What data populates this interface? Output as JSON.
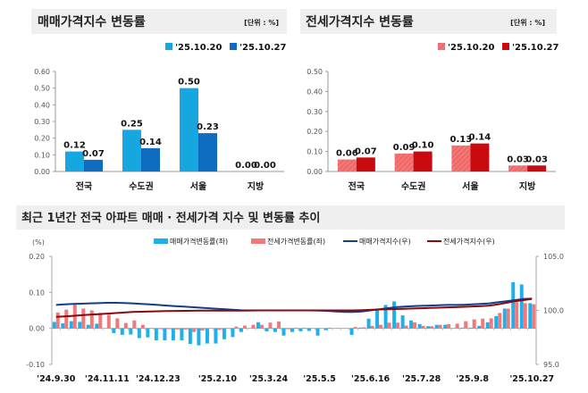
{
  "chart_data": [
    {
      "type": "bar",
      "title": "매매가격지수 변동률",
      "unit": "[단위 : %]",
      "categories": [
        "전국",
        "수도권",
        "서울",
        "지방"
      ],
      "series": [
        {
          "name": "'25.10.20",
          "values": [
            0.12,
            0.25,
            0.5,
            0.0
          ],
          "color": "#16a6e0"
        },
        {
          "name": "'25.10.27",
          "values": [
            0.07,
            0.14,
            0.23,
            0.0
          ],
          "color": "#0f6cc0"
        }
      ],
      "ylim": [
        0,
        0.6
      ],
      "yticks": [
        "0.00",
        "0.10",
        "0.20",
        "0.30",
        "0.40",
        "0.50",
        "0.60"
      ],
      "legend": "top-right"
    },
    {
      "type": "bar",
      "title": "전세가격지수 변동률",
      "unit": "[단위 : %]",
      "categories": [
        "전국",
        "수도권",
        "서울",
        "지방"
      ],
      "series": [
        {
          "name": "'25.10.20",
          "values": [
            0.06,
            0.09,
            0.13,
            0.03
          ],
          "color": "#f06868"
        },
        {
          "name": "'25.10.27",
          "values": [
            0.07,
            0.1,
            0.14,
            0.03
          ],
          "color": "#c90b10"
        }
      ],
      "ylim": [
        0,
        0.5
      ],
      "yticks": [
        "0.00",
        "0.10",
        "0.20",
        "0.30",
        "0.40",
        "0.50"
      ],
      "legend": "top-right"
    },
    {
      "type": "bar+line",
      "title": "최근 1년간 전국 아파트 매매 · 전세가격 지수 및 변동률 추이",
      "ylabel_left": "(%)",
      "ylim_left": [
        -0.1,
        0.2
      ],
      "yticks_left": [
        "-0.10",
        "0.00",
        "0.10",
        "0.20"
      ],
      "ylim_right": [
        95,
        105
      ],
      "yticks_right": [
        "95.0",
        "100.0",
        "105.0"
      ],
      "xtick_labels": [
        "'24.9.30",
        "'24.11.11",
        "'24.12.23",
        "'25.2.10",
        "'25.3.24",
        "'25.5.5",
        "'25.6.16",
        "'25.7.28",
        "'25.9.8",
        "'25.10.27"
      ],
      "xtick_index": [
        0,
        6,
        12,
        19,
        25,
        31,
        37,
        43,
        49,
        56
      ],
      "legend": "top",
      "series": [
        {
          "name": "매매가격변동률(좌)",
          "kind": "bar",
          "axis": "left",
          "color": "#1eb0ea",
          "values": [
            0.018,
            0.014,
            0.02,
            0.018,
            0.01,
            0.013,
            0.0,
            -0.013,
            -0.018,
            -0.017,
            -0.027,
            -0.025,
            -0.033,
            -0.033,
            -0.033,
            -0.033,
            -0.043,
            -0.047,
            -0.042,
            -0.042,
            -0.03,
            -0.024,
            -0.01,
            0.0,
            0.017,
            -0.008,
            -0.01,
            -0.02,
            -0.01,
            -0.008,
            -0.007,
            -0.02,
            -0.005,
            0.0,
            0.0,
            -0.018,
            0.002,
            0.027,
            0.05,
            0.065,
            0.075,
            0.036,
            0.022,
            0.012,
            0.006,
            0.01,
            0.01,
            0.0,
            0.002,
            0.002,
            0.007,
            0.017,
            0.034,
            0.055,
            0.128,
            0.122,
            0.07
          ]
        },
        {
          "name": "전세가격변동률(좌)",
          "kind": "bar",
          "axis": "left",
          "color": "#f07a7a",
          "values": [
            0.044,
            0.052,
            0.066,
            0.055,
            0.05,
            0.043,
            0.038,
            0.028,
            0.015,
            0.022,
            0.01,
            0.001,
            -0.002,
            -0.002,
            -0.003,
            -0.003,
            -0.01,
            -0.006,
            0.0,
            -0.004,
            0.0,
            0.005,
            0.008,
            0.01,
            0.01,
            0.016,
            0.019,
            -0.002,
            0.002,
            0.002,
            0.0,
            0.0,
            0.002,
            0.001,
            0.0,
            0.004,
            0.003,
            0.007,
            0.01,
            0.016,
            0.016,
            0.008,
            0.017,
            0.007,
            0.006,
            0.01,
            0.012,
            0.013,
            0.02,
            0.025,
            0.027,
            0.028,
            0.043,
            0.055,
            0.073,
            0.07,
            0.067
          ]
        },
        {
          "name": "매매가격지수(우)",
          "kind": "line",
          "axis": "right",
          "color": "#123f8c",
          "values": [
            100.5,
            100.55,
            100.6,
            100.62,
            100.65,
            100.67,
            100.7,
            100.7,
            100.68,
            100.65,
            100.6,
            100.55,
            100.5,
            100.45,
            100.4,
            100.35,
            100.3,
            100.25,
            100.2,
            100.15,
            100.1,
            100.05,
            100.0,
            100.0,
            100.0,
            100.0,
            100.0,
            100.0,
            100.0,
            100.0,
            100.0,
            99.98,
            99.95,
            99.9,
            99.85,
            99.85,
            99.9,
            100.0,
            100.1,
            100.2,
            100.3,
            100.35,
            100.4,
            100.42,
            100.45,
            100.47,
            100.5,
            100.5,
            100.52,
            100.55,
            100.6,
            100.65,
            100.75,
            100.85,
            100.95,
            101.05,
            101.1
          ]
        },
        {
          "name": "전세가격지수(우)",
          "kind": "line",
          "axis": "right",
          "color": "#8b0a0f",
          "values": [
            99.4,
            99.45,
            99.5,
            99.55,
            99.6,
            99.65,
            99.7,
            99.75,
            99.8,
            99.85,
            99.88,
            99.9,
            99.92,
            99.94,
            99.95,
            99.96,
            99.97,
            99.98,
            99.98,
            99.98,
            99.98,
            99.98,
            99.98,
            99.99,
            100.0,
            100.0,
            100.0,
            100.0,
            100.0,
            100.0,
            100.0,
            100.0,
            100.0,
            100.0,
            100.0,
            100.0,
            100.02,
            100.05,
            100.08,
            100.1,
            100.12,
            100.15,
            100.17,
            100.2,
            100.22,
            100.25,
            100.28,
            100.3,
            100.33,
            100.36,
            100.4,
            100.45,
            100.55,
            100.7,
            100.85,
            100.95,
            101.05
          ]
        }
      ]
    }
  ]
}
